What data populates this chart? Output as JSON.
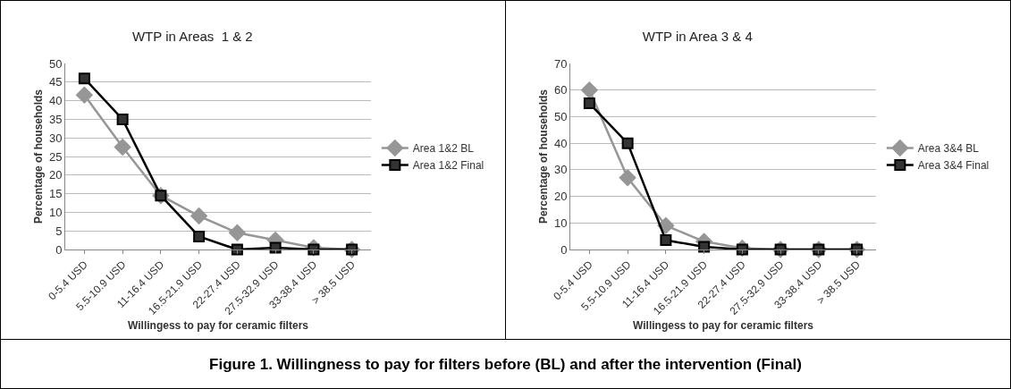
{
  "chart_data": [
    {
      "type": "line",
      "title": "WTP in Areas  1 & 2",
      "xlabel": "Willingess to pay for ceramic filters",
      "ylabel": "Percentage of households",
      "categories": [
        "0-5.4 USD",
        "5.5-10.9 USD",
        "11-16.4 USD",
        "16.5-21.9 USD",
        "22-27.4 USD",
        "27.5-32.9 USD",
        "33-38.4 USD",
        "> 38.5 USD"
      ],
      "series": [
        {
          "name": "Area 1&2 BL",
          "color": "#969696",
          "marker": "diamond",
          "values": [
            41.5,
            27.5,
            14.5,
            9,
            4.5,
            2.5,
            0.5,
            0
          ]
        },
        {
          "name": "Area 1&2 Final",
          "color": "#000000",
          "marker": "square",
          "values": [
            46,
            35,
            14.5,
            3.5,
            0,
            0.5,
            0,
            0
          ]
        }
      ],
      "ylim": [
        0,
        50
      ],
      "yticks": [
        0,
        5,
        10,
        15,
        20,
        25,
        30,
        35,
        40,
        45,
        50
      ],
      "grid": "y",
      "legend": "right",
      "line_style": "solid",
      "annotations": [
        "Figure 1. Willingness to pay for filters before (BL) and after the intervention (Final)"
      ]
    },
    {
      "type": "line",
      "title": "WTP in Area 3 & 4",
      "xlabel": "Willingess to pay for ceramic filters",
      "ylabel": "Percentage of households",
      "categories": [
        "0-5.4 USD",
        "5.5-10.9 USD",
        "11-16.4 USD",
        "16.5-21.9 USD",
        "22-27.4 USD",
        "27.5-32.9 USD",
        "33-38.4 USD",
        "> 38.5 USD"
      ],
      "series": [
        {
          "name": "Area 3&4 BL",
          "color": "#969696",
          "marker": "diamond",
          "values": [
            60,
            27,
            9,
            3,
            0.5,
            0,
            0,
            0
          ]
        },
        {
          "name": "Area 3&4 Final",
          "color": "#000000",
          "marker": "square",
          "values": [
            55,
            40,
            3.5,
            1,
            0,
            0,
            0,
            0
          ]
        }
      ],
      "ylim": [
        0,
        70
      ],
      "yticks": [
        0,
        10,
        20,
        30,
        40,
        50,
        60,
        70
      ],
      "grid": "y",
      "legend": "right",
      "line_style": "solid"
    }
  ]
}
